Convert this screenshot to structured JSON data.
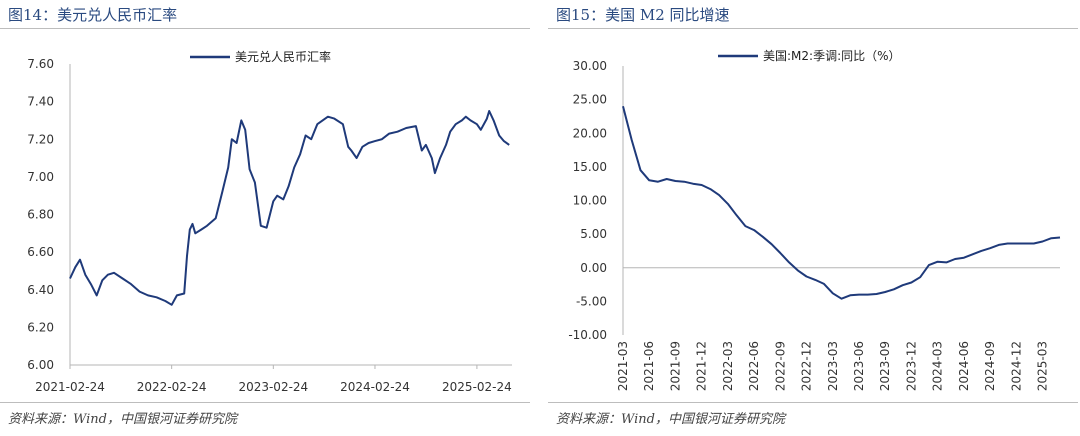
{
  "figures": [
    {
      "title": "图14：美元兑人民币汇率",
      "source": "资料来源：Wind，中国银河证券研究院"
    },
    {
      "title": "图15：美国 M2 同比增速",
      "source": "资料来源：Wind，中国银河证券研究院"
    }
  ],
  "chart_data": [
    {
      "type": "line",
      "ylim": [
        6.0,
        7.6
      ],
      "yticks": [
        "7.60",
        "7.40",
        "7.20",
        "7.00",
        "6.80",
        "6.60",
        "6.40",
        "6.20",
        "6.00"
      ],
      "xticks": [
        "2021-02-24",
        "2022-02-24",
        "2023-02-24",
        "2024-02-24",
        "2025-02-24"
      ],
      "xlim": [
        "2021-02-24",
        "2025-06-30"
      ],
      "color": "#1f3a7a",
      "legend_position": "top-center",
      "series": [
        {
          "name": "美元兑人民币汇率",
          "x": [
            "2021-02-24",
            "2021-03-15",
            "2021-04-01",
            "2021-04-20",
            "2021-05-10",
            "2021-05-31",
            "2021-06-20",
            "2021-07-10",
            "2021-08-01",
            "2021-09-01",
            "2021-10-01",
            "2021-11-01",
            "2021-12-01",
            "2022-01-01",
            "2022-02-01",
            "2022-02-24",
            "2022-03-15",
            "2022-04-10",
            "2022-04-20",
            "2022-04-30",
            "2022-05-10",
            "2022-05-20",
            "2022-06-10",
            "2022-07-01",
            "2022-08-01",
            "2022-08-25",
            "2022-09-15",
            "2022-09-28",
            "2022-10-15",
            "2022-11-01",
            "2022-11-15",
            "2022-12-01",
            "2022-12-20",
            "2023-01-10",
            "2023-01-31",
            "2023-02-24",
            "2023-03-10",
            "2023-04-01",
            "2023-04-20",
            "2023-05-10",
            "2023-05-31",
            "2023-06-20",
            "2023-07-10",
            "2023-08-01",
            "2023-08-20",
            "2023-09-08",
            "2023-10-01",
            "2023-11-01",
            "2023-11-20",
            "2023-12-01",
            "2023-12-20",
            "2024-01-10",
            "2024-02-01",
            "2024-02-24",
            "2024-03-20",
            "2024-04-15",
            "2024-05-15",
            "2024-06-15",
            "2024-07-20",
            "2024-08-10",
            "2024-08-25",
            "2024-09-15",
            "2024-09-26",
            "2024-10-15",
            "2024-11-05",
            "2024-11-20",
            "2024-12-10",
            "2025-01-01",
            "2025-01-15",
            "2025-02-01",
            "2025-02-24",
            "2025-03-10",
            "2025-04-01",
            "2025-04-09",
            "2025-04-25",
            "2025-05-15",
            "2025-06-01",
            "2025-06-20"
          ],
          "y": [
            6.46,
            6.52,
            6.56,
            6.48,
            6.43,
            6.37,
            6.45,
            6.48,
            6.49,
            6.46,
            6.43,
            6.39,
            6.37,
            6.36,
            6.34,
            6.32,
            6.37,
            6.38,
            6.58,
            6.72,
            6.75,
            6.7,
            6.72,
            6.74,
            6.78,
            6.92,
            7.05,
            7.2,
            7.18,
            7.3,
            7.25,
            7.04,
            6.97,
            6.74,
            6.73,
            6.87,
            6.9,
            6.88,
            6.95,
            7.05,
            7.12,
            7.22,
            7.2,
            7.28,
            7.3,
            7.32,
            7.31,
            7.28,
            7.16,
            7.14,
            7.1,
            7.16,
            7.18,
            7.19,
            7.2,
            7.23,
            7.24,
            7.26,
            7.27,
            7.14,
            7.17,
            7.1,
            7.02,
            7.1,
            7.17,
            7.24,
            7.28,
            7.3,
            7.32,
            7.3,
            7.28,
            7.25,
            7.31,
            7.35,
            7.3,
            7.22,
            7.19,
            7.17
          ]
        }
      ]
    },
    {
      "type": "line",
      "ylim": [
        -10.0,
        30.0
      ],
      "yticks": [
        "30.00",
        "25.00",
        "20.00",
        "15.00",
        "10.00",
        "5.00",
        "0.00",
        "-5.00",
        "-10.00"
      ],
      "xticks": [
        "2021-03",
        "2021-06",
        "2021-09",
        "2021-12",
        "2022-03",
        "2022-06",
        "2022-09",
        "2022-12",
        "2023-03",
        "2023-06",
        "2023-09",
        "2023-12",
        "2024-03",
        "2024-06",
        "2024-09",
        "2024-12",
        "2025-03"
      ],
      "xlim": [
        "2021-03",
        "2025-05"
      ],
      "color": "#1f3a7a",
      "legend_position": "top-center",
      "series": [
        {
          "name": "美国:M2:季调:同比（%）",
          "x": [
            "2021-03",
            "2021-04",
            "2021-05",
            "2021-06",
            "2021-07",
            "2021-08",
            "2021-09",
            "2021-10",
            "2021-11",
            "2021-12",
            "2022-01",
            "2022-02",
            "2022-03",
            "2022-04",
            "2022-05",
            "2022-06",
            "2022-07",
            "2022-08",
            "2022-09",
            "2022-10",
            "2022-11",
            "2022-12",
            "2023-01",
            "2023-02",
            "2023-03",
            "2023-04",
            "2023-05",
            "2023-06",
            "2023-07",
            "2023-08",
            "2023-09",
            "2023-10",
            "2023-11",
            "2023-12",
            "2024-01",
            "2024-02",
            "2024-03",
            "2024-04",
            "2024-05",
            "2024-06",
            "2024-07",
            "2024-08",
            "2024-09",
            "2024-10",
            "2024-11",
            "2024-12",
            "2025-01",
            "2025-02",
            "2025-03",
            "2025-04",
            "2025-05"
          ],
          "y": [
            24.0,
            19.0,
            14.5,
            13.0,
            12.8,
            13.2,
            12.9,
            12.8,
            12.5,
            12.3,
            11.7,
            10.8,
            9.5,
            7.8,
            6.2,
            5.6,
            4.6,
            3.5,
            2.2,
            0.8,
            -0.4,
            -1.3,
            -1.8,
            -2.4,
            -3.8,
            -4.6,
            -4.1,
            -4.0,
            -4.0,
            -3.9,
            -3.6,
            -3.2,
            -2.6,
            -2.2,
            -1.4,
            0.4,
            0.9,
            0.8,
            1.3,
            1.5,
            2.0,
            2.5,
            2.9,
            3.4,
            3.6,
            3.6,
            3.6,
            3.6,
            3.9,
            4.4,
            4.5
          ]
        }
      ]
    }
  ]
}
